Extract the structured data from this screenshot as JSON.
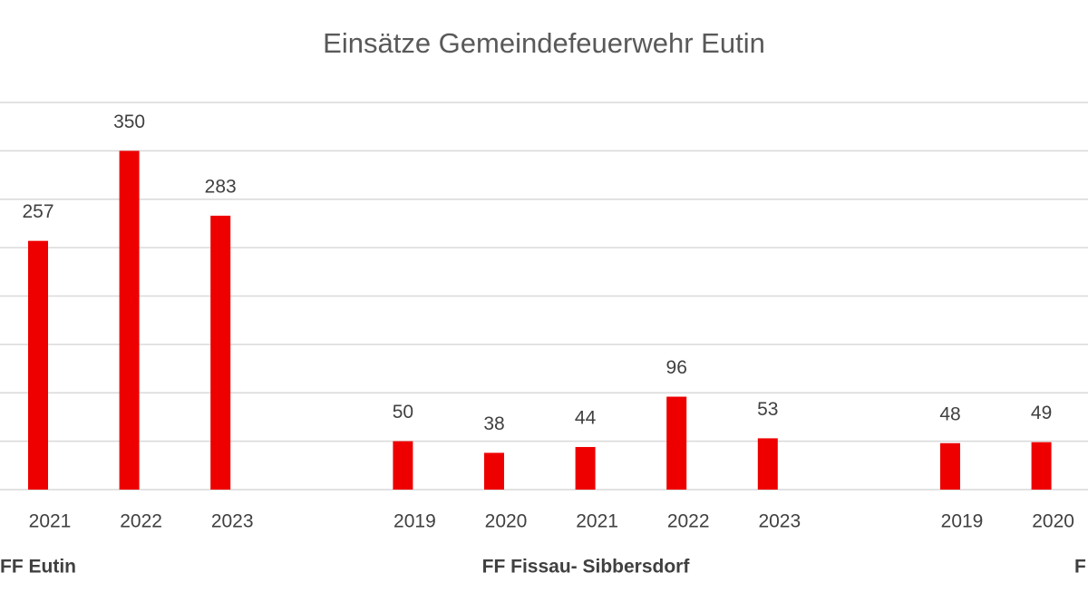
{
  "chart_data": {
    "type": "bar",
    "title": "Einsätze Gemeindefeuerwehr Eutin",
    "color": "#ee0000",
    "groups": [
      {
        "name": "FF Eutin",
        "categories": [
          "2021",
          "2022",
          "2023"
        ],
        "values": [
          257,
          350,
          283
        ]
      },
      {
        "name": "FF Fissau- Sibbersdorf",
        "categories": [
          "2019",
          "2020",
          "2021",
          "2022",
          "2023"
        ],
        "values": [
          50,
          38,
          44,
          96,
          53
        ]
      },
      {
        "name": "F",
        "categories": [
          "2019",
          "2020"
        ],
        "values": [
          48,
          49
        ]
      }
    ],
    "ylim": [
      0,
      400
    ],
    "yticks": [
      0,
      50,
      100,
      150,
      200,
      250,
      300,
      350,
      400
    ],
    "grid": true
  }
}
